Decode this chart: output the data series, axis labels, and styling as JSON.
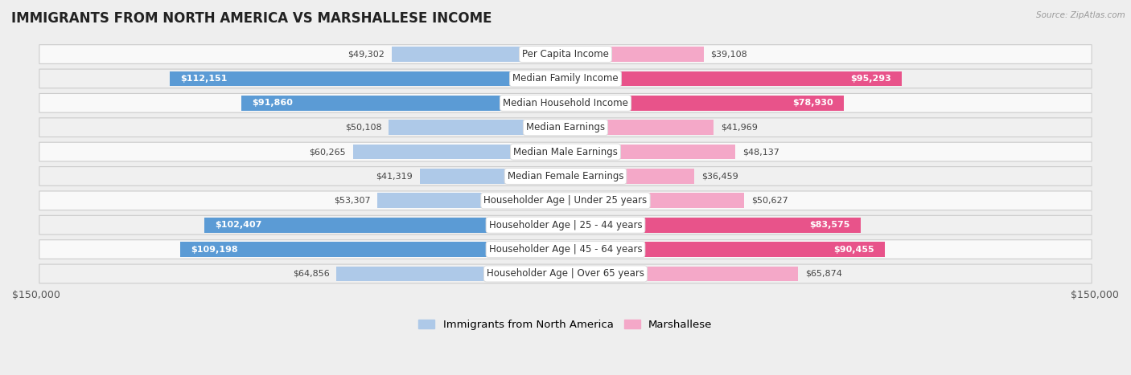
{
  "title": "IMMIGRANTS FROM NORTH AMERICA VS MARSHALLESE INCOME",
  "source": "Source: ZipAtlas.com",
  "categories": [
    "Per Capita Income",
    "Median Family Income",
    "Median Household Income",
    "Median Earnings",
    "Median Male Earnings",
    "Median Female Earnings",
    "Householder Age | Under 25 years",
    "Householder Age | 25 - 44 years",
    "Householder Age | 45 - 64 years",
    "Householder Age | Over 65 years"
  ],
  "north_america": [
    49302,
    112151,
    91860,
    50108,
    60265,
    41319,
    53307,
    102407,
    109198,
    64856
  ],
  "marshallese": [
    39108,
    95293,
    78930,
    41969,
    48137,
    36459,
    50627,
    83575,
    90455,
    65874
  ],
  "north_america_color_dark": "#5b9bd5",
  "north_america_color_light": "#aec9e8",
  "marshallese_color_dark": "#e8538a",
  "marshallese_color_light": "#f4a8c8",
  "na_inside_threshold": 70000,
  "ma_inside_threshold": 70000,
  "bar_height": 0.62,
  "xlim": 150000,
  "background_color": "#eeeeee",
  "row_colors": [
    "#f9f9f9",
    "#f0f0f0"
  ],
  "row_edge_color": "#cccccc",
  "legend_labels": [
    "Immigrants from North America",
    "Marshallese"
  ],
  "label_fontsize": 8.5,
  "title_fontsize": 12,
  "value_fontsize": 8,
  "tick_fontsize": 9
}
